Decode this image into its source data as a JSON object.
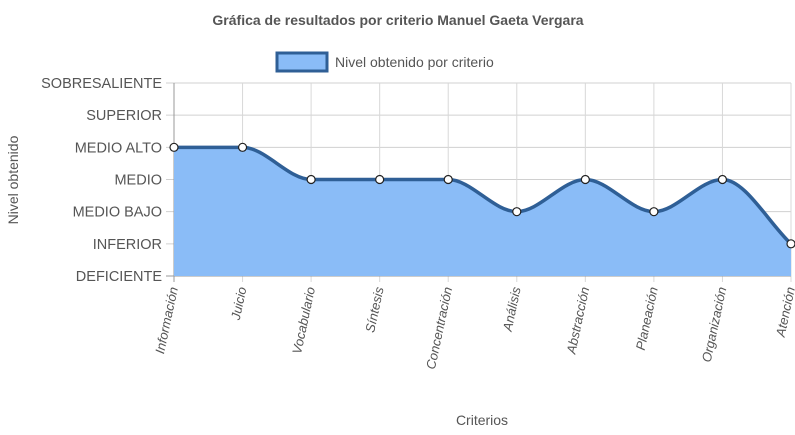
{
  "chart_data": {
    "type": "area",
    "title": "Gráfica de resultados por criterio Manuel Gaeta Vergara",
    "xlabel": "Criterios",
    "ylabel": "Nivel obtenido",
    "categories": [
      "Información",
      "Juicio",
      "Vocabulario",
      "Síntesis",
      "Concentración",
      "Análisis",
      "Abstracción",
      "Planeación",
      "Organización",
      "Atención"
    ],
    "y_levels": [
      "DEFICIENTE",
      "INFERIOR",
      "MEDIO BAJO",
      "MEDIO",
      "MEDIO ALTO",
      "SUPERIOR",
      "SOBRESALIENTE"
    ],
    "ylim": [
      0,
      6
    ],
    "series": [
      {
        "name": "Nivel obtenido por criterio",
        "values": [
          4,
          4,
          3,
          3,
          3,
          2,
          3,
          2,
          3,
          1
        ],
        "line_color": "#2f5f96",
        "fill_color": "#8abcf7"
      }
    ],
    "legend_position": "top-center",
    "grid": true
  }
}
